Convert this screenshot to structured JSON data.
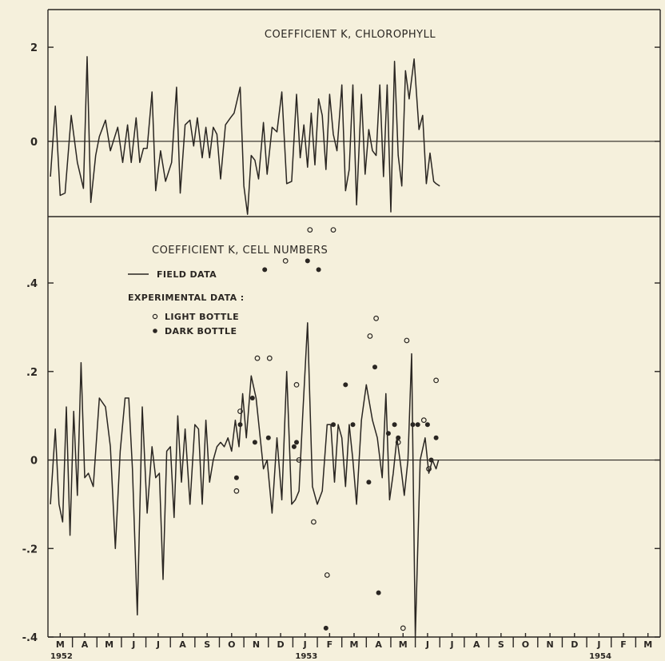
{
  "chart_data": [
    {
      "type": "line",
      "title": "COEFFICIENT K, CHLOROPHYLL",
      "ylim": [
        -1.6,
        2.8
      ],
      "yticks": [
        "2",
        "0"
      ],
      "ytick_values": [
        2,
        0
      ],
      "series": [
        {
          "x": [
            0.1,
            0.3,
            0.5,
            0.7,
            0.95,
            1.2,
            1.45,
            1.6,
            1.75,
            1.95,
            2.1,
            2.35,
            2.55,
            2.85,
            3.05,
            3.25,
            3.4,
            3.6,
            3.75,
            3.9,
            4.05,
            4.25,
            4.4,
            4.6,
            4.8,
            5.05,
            5.25,
            5.4,
            5.6,
            5.8,
            5.95,
            6.1,
            6.3,
            6.45,
            6.6,
            6.75,
            6.9,
            7.05,
            7.25,
            7.45,
            7.6,
            7.85,
            8.0,
            8.15,
            8.3,
            8.45,
            8.6,
            8.8,
            8.95,
            9.15,
            9.35,
            9.55,
            9.75,
            9.95,
            10.15,
            10.3,
            10.45,
            10.6,
            10.75,
            10.9,
            11.05,
            11.2,
            11.35,
            11.5,
            11.65,
            11.8,
            12.0,
            12.15,
            12.3,
            12.45,
            12.6,
            12.8,
            12.95,
            13.1,
            13.25,
            13.4,
            13.55,
            13.7,
            13.85,
            14.0,
            14.15,
            14.3,
            14.45,
            14.6,
            14.75,
            14.95,
            15.15,
            15.3,
            15.45,
            15.6,
            15.75,
            15.85,
            16.0
          ],
          "y": [
            -0.75,
            0.75,
            -1.15,
            -1.1,
            0.55,
            -0.45,
            -1.0,
            1.8,
            -1.3,
            -0.3,
            0.1,
            0.45,
            -0.2,
            0.3,
            -0.45,
            0.35,
            -0.45,
            0.5,
            -0.45,
            -0.15,
            -0.15,
            1.05,
            -1.05,
            -0.2,
            -0.85,
            -0.45,
            1.15,
            -1.1,
            0.35,
            0.45,
            -0.1,
            0.5,
            -0.35,
            0.3,
            -0.35,
            0.3,
            0.15,
            -0.8,
            0.35,
            0.5,
            0.6,
            1.15,
            -0.95,
            -1.55,
            -0.3,
            -0.4,
            -0.8,
            0.4,
            -0.7,
            0.3,
            0.2,
            1.05,
            -0.9,
            -0.85,
            1.0,
            -0.35,
            0.35,
            -0.55,
            0.6,
            -0.5,
            0.9,
            0.55,
            -0.6,
            1.0,
            0.15,
            -0.2,
            1.2,
            -1.05,
            -0.6,
            1.2,
            -1.35,
            1.0,
            -0.7,
            0.25,
            -0.2,
            -0.3,
            1.2,
            -0.75,
            1.2,
            -1.5,
            1.7,
            -0.3,
            -0.95,
            1.5,
            0.9,
            1.75,
            0.25,
            0.55,
            -0.9,
            -0.25,
            -0.85,
            -0.9,
            -0.95
          ]
        }
      ]
    },
    {
      "type": "line",
      "title": "COEFFICIENT K, CELL NUMBERS",
      "ylim": [
        -0.4,
        0.55
      ],
      "yticks": [
        ".4",
        ".2",
        "0",
        "-.2",
        "-.4"
      ],
      "ytick_values": [
        0.4,
        0.2,
        0,
        -0.2,
        -0.4
      ],
      "legend": {
        "field": "FIELD DATA",
        "experimental": "EXPERIMENTAL DATA :",
        "light": "LIGHT BOTTLE",
        "dark": "DARK BOTTLE"
      },
      "series": [
        {
          "name": "FIELD DATA",
          "x": [
            0.1,
            0.3,
            0.45,
            0.6,
            0.75,
            0.9,
            1.05,
            1.2,
            1.35,
            1.5,
            1.65,
            1.85,
            2.1,
            2.35,
            2.55,
            2.75,
            2.95,
            3.15,
            3.3,
            3.45,
            3.65,
            3.85,
            4.05,
            4.25,
            4.4,
            4.55,
            4.7,
            4.85,
            5.0,
            5.15,
            5.3,
            5.45,
            5.6,
            5.8,
            6.0,
            6.15,
            6.3,
            6.45,
            6.6,
            6.75,
            6.9,
            7.05,
            7.2,
            7.35,
            7.5,
            7.65,
            7.8,
            7.95,
            8.1,
            8.3,
            8.5,
            8.65,
            8.8,
            8.95,
            9.15,
            9.35,
            9.55,
            9.75,
            9.95,
            10.1,
            10.25,
            10.4,
            10.6,
            10.8,
            11.0,
            11.2,
            11.4,
            11.55,
            11.7,
            11.85,
            12.0,
            12.15,
            12.3,
            12.45,
            12.6,
            12.8,
            13.0,
            13.25,
            13.45,
            13.65,
            13.8,
            13.95,
            14.1,
            14.25,
            14.4,
            14.55,
            14.7,
            14.85,
            15.0,
            15.2,
            15.4,
            15.55,
            15.7,
            15.85,
            15.95
          ],
          "y": [
            -0.1,
            0.07,
            -0.1,
            -0.14,
            0.12,
            -0.17,
            0.11,
            -0.08,
            0.22,
            -0.04,
            -0.03,
            -0.06,
            0.14,
            0.12,
            0.03,
            -0.2,
            0.02,
            0.14,
            0.14,
            -0.02,
            -0.35,
            0.12,
            -0.12,
            0.03,
            -0.04,
            -0.03,
            -0.27,
            0.02,
            0.03,
            -0.13,
            0.1,
            -0.05,
            0.07,
            -0.1,
            0.08,
            0.07,
            -0.1,
            0.09,
            -0.05,
            0.0,
            0.03,
            0.04,
            0.03,
            0.05,
            0.02,
            0.09,
            0.03,
            0.15,
            0.05,
            0.19,
            0.14,
            0.06,
            -0.02,
            0.0,
            -0.12,
            0.05,
            -0.09,
            0.2,
            -0.1,
            -0.09,
            -0.07,
            0.1,
            0.31,
            -0.06,
            -0.1,
            -0.07,
            0.08,
            0.08,
            -0.05,
            0.08,
            0.05,
            -0.06,
            0.08,
            0.0,
            -0.1,
            0.09,
            0.17,
            0.09,
            0.05,
            -0.04,
            0.15,
            -0.09,
            -0.03,
            0.05,
            -0.01,
            -0.08,
            0.0,
            0.24,
            -0.4,
            0.0,
            0.05,
            -0.03,
            0.0,
            -0.02,
            0.0
          ]
        },
        {
          "name": "LIGHT BOTTLE",
          "x": [
            7.7,
            7.85,
            8.55,
            9.05,
            9.7,
            10.15,
            10.25,
            10.7,
            10.85,
            11.4,
            11.65,
            13.15,
            13.4,
            14.3,
            14.5,
            14.65,
            15.35,
            15.55,
            15.85
          ],
          "y": [
            -0.07,
            0.11,
            0.23,
            0.23,
            0.45,
            0.17,
            0.0,
            0.52,
            -0.14,
            -0.26,
            0.52,
            0.28,
            0.32,
            0.04,
            -0.38,
            0.27,
            0.09,
            -0.02,
            0.18
          ],
          "marker": "open-circle"
        },
        {
          "name": "DARK BOTTLE",
          "x": [
            7.7,
            7.85,
            8.35,
            8.45,
            8.85,
            9.0,
            10.05,
            10.15,
            10.6,
            11.05,
            11.35,
            11.65,
            12.15,
            12.45,
            13.1,
            13.35,
            13.5,
            13.9,
            14.15,
            14.3,
            14.9,
            15.1,
            15.5,
            15.65,
            15.85
          ],
          "y": [
            -0.04,
            0.08,
            0.14,
            0.04,
            0.43,
            0.05,
            0.03,
            0.04,
            0.45,
            0.43,
            -0.38,
            0.08,
            0.17,
            0.08,
            -0.05,
            0.21,
            -0.3,
            0.06,
            0.08,
            0.05,
            0.08,
            0.08,
            0.08,
            0.0,
            0.05
          ],
          "marker": "filled-circle"
        }
      ]
    }
  ],
  "x_axis": {
    "months": [
      "M",
      "A",
      "M",
      "J",
      "J",
      "A",
      "S",
      "O",
      "N",
      "D",
      "J",
      "F",
      "M",
      "A",
      "M",
      "J",
      "J",
      "A",
      "S",
      "O",
      "N",
      "D",
      "J",
      "F",
      "M"
    ],
    "years": [
      {
        "label": "1952",
        "month_index": 0
      },
      {
        "label": "1953",
        "month_index": 10
      },
      {
        "label": "1954",
        "month_index": 22
      }
    ]
  },
  "colors": {
    "background": "#f5f0dc",
    "ink": "#2a2622"
  }
}
